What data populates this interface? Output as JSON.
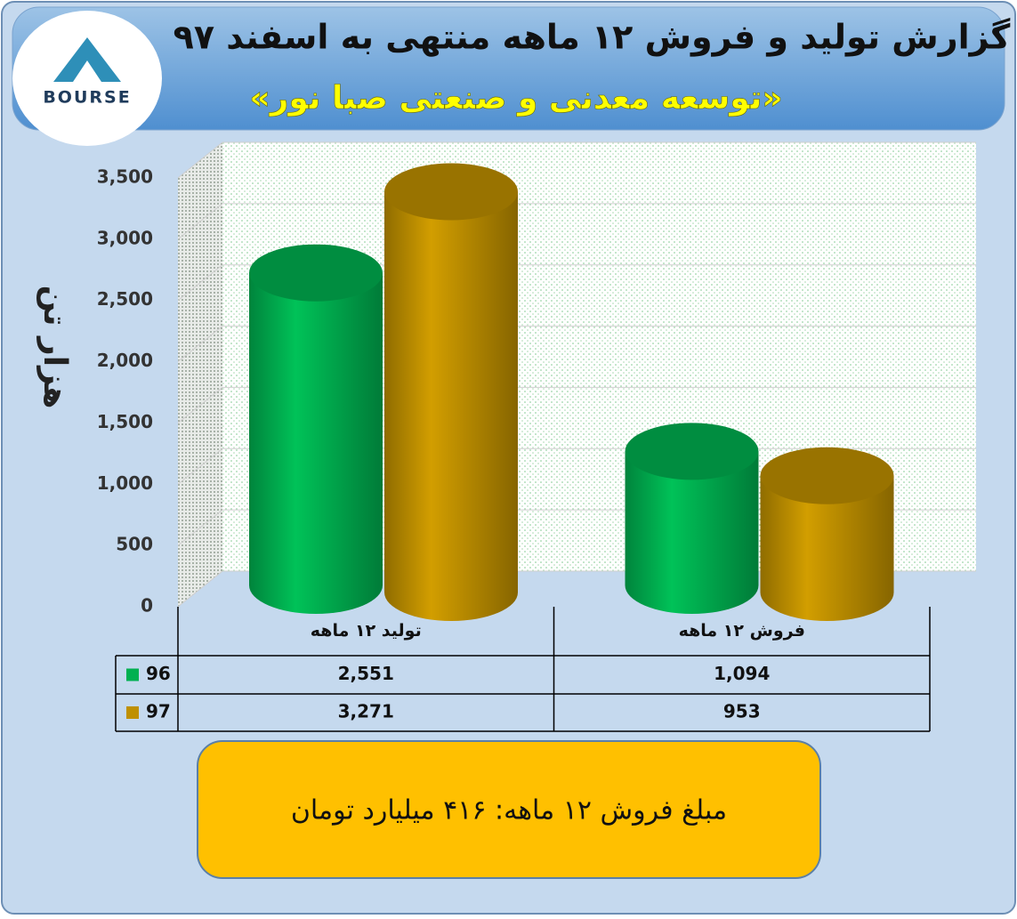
{
  "chart_data": {
    "type": "bar3d",
    "title": "گزارش تولید و فروش ۱۲ ماهه منتهی به اسفند ۹۷",
    "subtitle": "«توسعه معدنی و صنعتی صبا نور»",
    "y_label": "هزار تن",
    "logo": "BOURSE",
    "categories": [
      "تولید ۱۲ ماهه",
      "فروش ۱۲ ماهه"
    ],
    "series": [
      {
        "name": "96",
        "color": "#00b050",
        "values": [
          2551,
          1094
        ],
        "value_labels": [
          "2,551",
          "1,094"
        ]
      },
      {
        "name": "97",
        "color": "#bf9000",
        "values": [
          3271,
          953
        ],
        "value_labels": [
          "3,271",
          "953"
        ]
      }
    ],
    "ylim": [
      0,
      3500
    ],
    "yticks": [
      0,
      500,
      {
        "value": 1000,
        "label": "1,000"
      },
      {
        "value": 1500,
        "label": "1,500"
      },
      {
        "value": 2000,
        "label": "2,000"
      },
      {
        "value": 2500,
        "label": "2,500"
      },
      {
        "value": 3000,
        "label": "3,000"
      },
      {
        "value": 3500,
        "label": "3,500"
      }
    ],
    "grid": true,
    "note": "مبلغ فروش ۱۲ ماهه: ۴۱۶ میلیارد تومان"
  }
}
